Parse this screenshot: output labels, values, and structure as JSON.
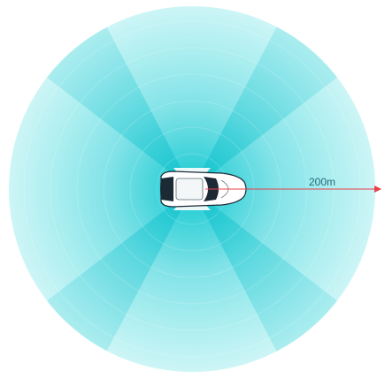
{
  "range_label": "200m",
  "colors": {
    "field_outer": "#c9f4f5",
    "field_mid": "#8fe6ea",
    "field_inner": "#2fd0d8",
    "sector_dark": "#20c4cf",
    "arrow": "#e8404a",
    "label": "#246a78",
    "car_body": "#ffffff",
    "car_trim": "#1c2a35"
  },
  "icons": {
    "vehicle": "car-top-view-icon",
    "arrow_head": "arrow-right-icon"
  }
}
